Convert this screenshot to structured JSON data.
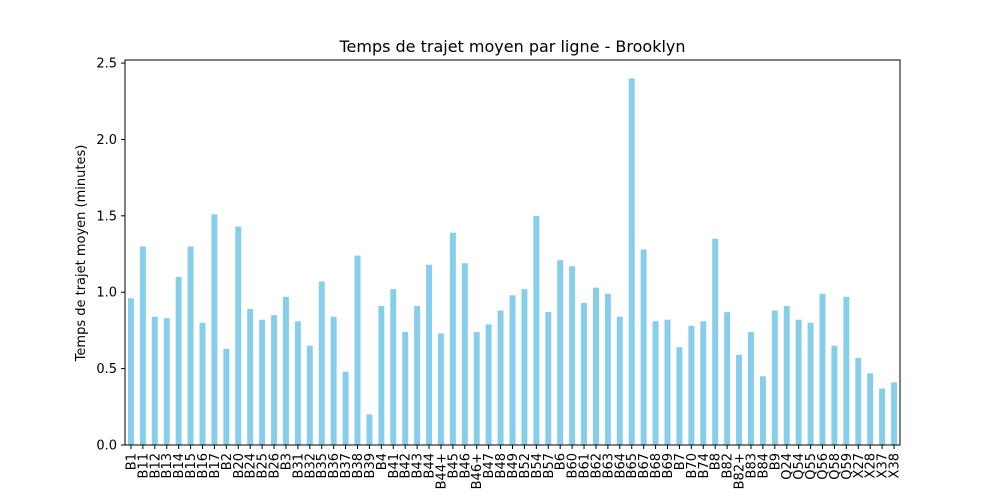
{
  "chart_data": {
    "type": "bar",
    "title": "Temps de trajet moyen par ligne - Brooklyn",
    "xlabel": "",
    "ylabel": "Temps de trajet moyen (minutes)",
    "ylim": [
      0,
      2.52
    ],
    "yticks": [
      0.0,
      0.5,
      1.0,
      1.5,
      2.0,
      2.5
    ],
    "ytick_labels": [
      "0.0",
      "0.5",
      "1.0",
      "1.5",
      "2.0",
      "2.5"
    ],
    "grid": false,
    "bar_color": "#87ceeb",
    "categories": [
      "B1",
      "B11",
      "B12",
      "B13",
      "B14",
      "B15",
      "B16",
      "B17",
      "B2",
      "B20",
      "B24",
      "B25",
      "B26",
      "B3",
      "B31",
      "B32",
      "B35",
      "B36",
      "B37",
      "B38",
      "B39",
      "B4",
      "B41",
      "B42",
      "B43",
      "B44",
      "B44+",
      "B45",
      "B46",
      "B46+",
      "B47",
      "B48",
      "B49",
      "B52",
      "B54",
      "B57",
      "B6",
      "B60",
      "B61",
      "B62",
      "B63",
      "B64",
      "B65",
      "B67",
      "B68",
      "B69",
      "B7",
      "B70",
      "B74",
      "B8",
      "B82",
      "B82+",
      "B83",
      "B84",
      "B9",
      "Q24",
      "Q54",
      "Q55",
      "Q56",
      "Q58",
      "Q59",
      "X27",
      "X28",
      "X37",
      "X38"
    ],
    "values": [
      0.96,
      1.3,
      0.84,
      0.83,
      1.1,
      1.3,
      0.8,
      1.51,
      0.63,
      1.43,
      0.89,
      0.82,
      0.85,
      0.97,
      0.81,
      0.65,
      1.07,
      0.84,
      0.48,
      1.24,
      0.2,
      0.91,
      1.02,
      0.74,
      0.91,
      1.18,
      0.73,
      1.39,
      1.19,
      0.74,
      0.79,
      0.88,
      0.98,
      1.02,
      1.5,
      0.87,
      1.21,
      1.17,
      0.93,
      1.03,
      0.99,
      0.84,
      2.4,
      1.28,
      0.81,
      0.82,
      0.64,
      0.78,
      0.81,
      1.35,
      0.87,
      0.59,
      0.74,
      0.45,
      0.88,
      0.91,
      0.82,
      0.8,
      0.99,
      0.65,
      0.97,
      0.57,
      0.47,
      0.37,
      0.41
    ]
  }
}
